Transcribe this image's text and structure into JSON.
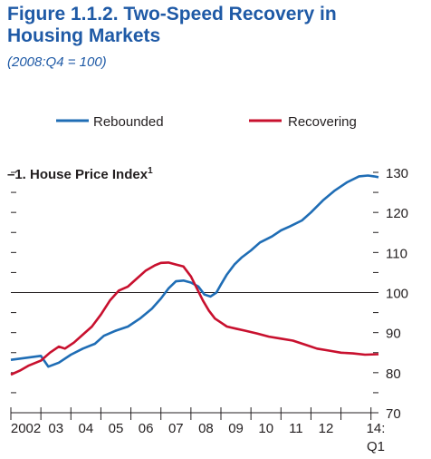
{
  "figure": {
    "title": "Figure 1.1.2.  Two-Speed Recovery in Housing Markets",
    "subtitle": "(2008:Q4 = 100)"
  },
  "chart_data": {
    "type": "line",
    "panel_label": "1. House Price Index",
    "panel_superscript": "1",
    "legend": [
      {
        "name": "Rebounded",
        "color": "#1f6db5"
      },
      {
        "name": "Recovering",
        "color": "#c8102e"
      }
    ],
    "legend_position": "top",
    "ylim": [
      70,
      130
    ],
    "yticks": [
      70,
      80,
      90,
      100,
      110,
      120,
      130
    ],
    "y_axis_side": "right",
    "xlim": [
      2002.0,
      2014.25
    ],
    "xtick_labels": [
      "2002",
      "03",
      "04",
      "05",
      "06",
      "07",
      "08",
      "09",
      "10",
      "11",
      "12",
      "14:"
    ],
    "xtick_sublabel": "Q1",
    "reference_line": 100,
    "series": [
      {
        "name": "Rebounded",
        "color": "#1f6db5",
        "x": [
          2002.0,
          2002.4,
          2002.8,
          2003.0,
          2003.25,
          2003.6,
          2004.0,
          2004.4,
          2004.8,
          2005.1,
          2005.5,
          2005.9,
          2006.3,
          2006.7,
          2007.0,
          2007.25,
          2007.5,
          2007.75,
          2008.0,
          2008.25,
          2008.45,
          2008.65,
          2008.85,
          2009.0,
          2009.2,
          2009.45,
          2009.7,
          2010.0,
          2010.3,
          2010.7,
          2011.0,
          2011.3,
          2011.7,
          2012.0,
          2012.4,
          2012.8,
          2013.2,
          2013.6,
          2013.9,
          2014.1,
          2014.25
        ],
        "y": [
          83.2,
          83.6,
          84.0,
          84.2,
          81.5,
          82.5,
          84.5,
          86.0,
          87.2,
          89.2,
          90.5,
          91.5,
          93.5,
          96.0,
          98.5,
          101.0,
          102.8,
          103.0,
          102.5,
          101.5,
          99.5,
          99.0,
          100.0,
          102.0,
          104.5,
          107.0,
          108.8,
          110.5,
          112.5,
          114.0,
          115.5,
          116.5,
          118.0,
          120.0,
          123.0,
          125.5,
          127.5,
          129.0,
          129.2,
          129.0,
          128.8
        ]
      },
      {
        "name": "Recovering",
        "color": "#c8102e",
        "x": [
          2002.0,
          2002.3,
          2002.6,
          2003.0,
          2003.3,
          2003.6,
          2003.8,
          2004.1,
          2004.4,
          2004.7,
          2005.0,
          2005.3,
          2005.6,
          2005.9,
          2006.2,
          2006.5,
          2006.8,
          2007.0,
          2007.25,
          2007.5,
          2007.75,
          2008.0,
          2008.2,
          2008.4,
          2008.6,
          2008.8,
          2009.0,
          2009.2,
          2009.5,
          2009.8,
          2010.2,
          2010.6,
          2011.0,
          2011.4,
          2011.8,
          2012.2,
          2012.6,
          2013.0,
          2013.4,
          2013.8,
          2014.25
        ],
        "y": [
          79.5,
          80.5,
          81.8,
          83.0,
          85.0,
          86.5,
          86.0,
          87.5,
          89.5,
          91.5,
          94.5,
          98.0,
          100.5,
          101.5,
          103.5,
          105.5,
          106.8,
          107.4,
          107.5,
          107.0,
          106.5,
          104.0,
          101.0,
          98.0,
          95.5,
          93.5,
          92.5,
          91.5,
          91.0,
          90.5,
          89.8,
          89.0,
          88.5,
          88.0,
          87.0,
          86.0,
          85.5,
          85.0,
          84.8,
          84.5,
          84.6
        ]
      }
    ]
  }
}
